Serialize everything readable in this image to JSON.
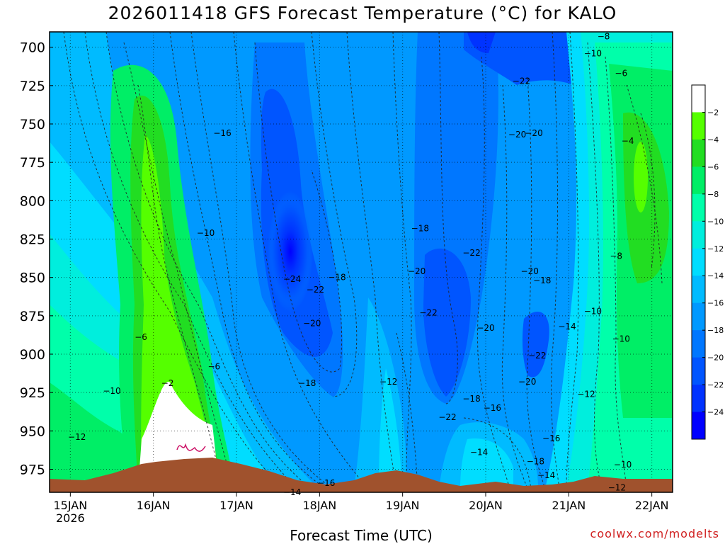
{
  "title": "2026011418 GFS Forecast Temperature (°C) for KALO",
  "credit": "coolwx.com/modelts",
  "chart_data": {
    "type": "heatmap",
    "title": "2026011418 GFS Forecast Temperature (°C) for KALO",
    "xlabel": "Forecast Time (UTC)",
    "ylabel": "",
    "x_tick_labels": [
      "15JAN",
      "16JAN",
      "17JAN",
      "18JAN",
      "19JAN",
      "20JAN",
      "21JAN",
      "22JAN"
    ],
    "x_tick_sublabel": "2026",
    "x_range_days": [
      14.75,
      22.25
    ],
    "y_ticks": [
      700,
      725,
      750,
      775,
      800,
      825,
      850,
      875,
      900,
      925,
      950,
      975
    ],
    "y_range_hpa": [
      690,
      990
    ],
    "y_inverted": true,
    "colorbar_ticks": [
      -2,
      -4,
      -6,
      -8,
      -10,
      -12,
      -14,
      -16,
      -18,
      -20,
      -22,
      -24
    ],
    "colorbar_colors": [
      "#ffffff",
      "#55ff00",
      "#22dd22",
      "#00ee66",
      "#00ffaa",
      "#00eedd",
      "#00ddff",
      "#00bbff",
      "#0099ff",
      "#0077ff",
      "#0055ff",
      "#0033ff",
      "#0000ff"
    ],
    "contour_labels": [
      {
        "text": "-8",
        "day": 21.42,
        "p": 693
      },
      {
        "text": "-10",
        "day": 21.29,
        "p": 704
      },
      {
        "text": "-6",
        "day": 21.63,
        "p": 717
      },
      {
        "text": "-22",
        "day": 20.43,
        "p": 722
      },
      {
        "text": "-4",
        "day": 21.71,
        "p": 761
      },
      {
        "text": "-16",
        "day": 16.83,
        "p": 756
      },
      {
        "text": "-20",
        "day": 20.38,
        "p": 757
      },
      {
        "text": "-20",
        "day": 20.58,
        "p": 756
      },
      {
        "text": "-10",
        "day": 16.63,
        "p": 821
      },
      {
        "text": "-18",
        "day": 19.21,
        "p": 818
      },
      {
        "text": "-22",
        "day": 19.83,
        "p": 834
      },
      {
        "text": "-8",
        "day": 21.57,
        "p": 836
      },
      {
        "text": "-24",
        "day": 17.67,
        "p": 851
      },
      {
        "text": "-22",
        "day": 17.95,
        "p": 858
      },
      {
        "text": "-18",
        "day": 18.21,
        "p": 850
      },
      {
        "text": "-20",
        "day": 19.17,
        "p": 846
      },
      {
        "text": "-20",
        "day": 20.53,
        "p": 846
      },
      {
        "text": "-18",
        "day": 20.68,
        "p": 852
      },
      {
        "text": "-10",
        "day": 21.29,
        "p": 872
      },
      {
        "text": "-22",
        "day": 19.31,
        "p": 873
      },
      {
        "text": "-20",
        "day": 17.91,
        "p": 880
      },
      {
        "text": "-20",
        "day": 20.0,
        "p": 883
      },
      {
        "text": "-14",
        "day": 20.98,
        "p": 882
      },
      {
        "text": "-6",
        "day": 15.85,
        "p": 889
      },
      {
        "text": "-10",
        "day": 21.63,
        "p": 890
      },
      {
        "text": "-22",
        "day": 20.62,
        "p": 901
      },
      {
        "text": "-6",
        "day": 16.73,
        "p": 908
      },
      {
        "text": "-12",
        "day": 18.83,
        "p": 918
      },
      {
        "text": "-18",
        "day": 17.85,
        "p": 919
      },
      {
        "text": "-20",
        "day": 20.5,
        "p": 918
      },
      {
        "text": "-2",
        "day": 16.17,
        "p": 919
      },
      {
        "text": "-10",
        "day": 15.5,
        "p": 924
      },
      {
        "text": "-18",
        "day": 19.83,
        "p": 929
      },
      {
        "text": "-16",
        "day": 20.08,
        "p": 935
      },
      {
        "text": "-12",
        "day": 21.21,
        "p": 926
      },
      {
        "text": "-22",
        "day": 19.54,
        "p": 941
      },
      {
        "text": "-12",
        "day": 15.08,
        "p": 954
      },
      {
        "text": "-16",
        "day": 20.79,
        "p": 955
      },
      {
        "text": "-14",
        "day": 19.92,
        "p": 964
      },
      {
        "text": "-18",
        "day": 20.6,
        "p": 970
      },
      {
        "text": "-10",
        "day": 21.65,
        "p": 972
      },
      {
        "text": "-14",
        "day": 20.73,
        "p": 979
      },
      {
        "text": "-16",
        "day": 18.08,
        "p": 984
      },
      {
        "text": "-14",
        "day": 17.67,
        "p": 990
      },
      {
        "text": "-12",
        "day": 21.58,
        "p": 987
      }
    ]
  }
}
